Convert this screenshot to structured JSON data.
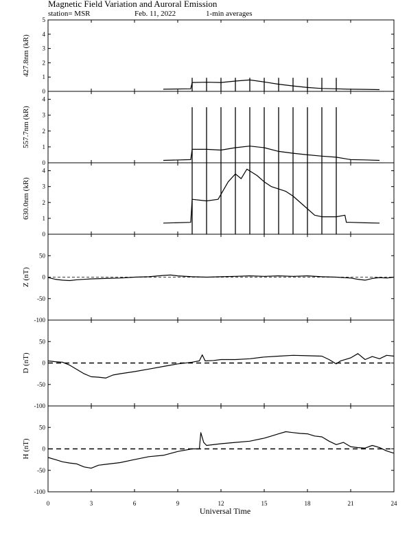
{
  "header": {
    "title": "Magnetic Field Variation and Auroral Emission",
    "station": "station= MSR",
    "date": "Feb. 11, 2022",
    "averaging": "1-min averages"
  },
  "chart_data": {
    "type": "line",
    "xlabel": "Universal Time",
    "xlim": [
      0,
      24
    ],
    "xticks": [
      0,
      3,
      6,
      9,
      12,
      15,
      18,
      21,
      24
    ],
    "panels": [
      {
        "id": "p4278",
        "ylabel": "427.8nm (kR)",
        "ylim": [
          0,
          5
        ],
        "yticks": [
          0,
          1,
          2,
          3,
          4,
          5
        ],
        "series": [
          {
            "values": [
              [
                8.0,
                0.15
              ],
              [
                9.9,
                0.18
              ],
              [
                10.0,
                0.62
              ],
              [
                11.0,
                0.64
              ],
              [
                12.0,
                0.62
              ],
              [
                13.0,
                0.72
              ],
              [
                14.0,
                0.8
              ],
              [
                15.0,
                0.66
              ],
              [
                16.0,
                0.5
              ],
              [
                17.0,
                0.38
              ],
              [
                18.0,
                0.27
              ],
              [
                19.0,
                0.2
              ],
              [
                20.0,
                0.18
              ],
              [
                21.0,
                0.15
              ],
              [
                22.0,
                0.14
              ],
              [
                23.0,
                0.12
              ]
            ]
          }
        ],
        "spikes": [
          10.0,
          11.0,
          12.0,
          13.0,
          14.0,
          15.0,
          16.0,
          17.0,
          18.0,
          19.0,
          20.0
        ],
        "spike_top": 0.95
      },
      {
        "id": "p5577",
        "ylabel": "557.7nm (kR)",
        "ylim": [
          0,
          4.5
        ],
        "yticks": [
          0,
          1,
          2,
          3,
          4
        ],
        "series": [
          {
            "values": [
              [
                8.0,
                0.15
              ],
              [
                9.9,
                0.2
              ],
              [
                10.0,
                0.85
              ],
              [
                11.0,
                0.85
              ],
              [
                12.0,
                0.8
              ],
              [
                13.0,
                0.95
              ],
              [
                14.0,
                1.05
              ],
              [
                15.0,
                0.95
              ],
              [
                16.0,
                0.72
              ],
              [
                17.0,
                0.6
              ],
              [
                18.0,
                0.5
              ],
              [
                19.0,
                0.42
              ],
              [
                20.0,
                0.35
              ],
              [
                21.0,
                0.2
              ],
              [
                22.0,
                0.18
              ],
              [
                23.0,
                0.15
              ]
            ]
          }
        ],
        "spikes": [
          10.0,
          11.0,
          12.0,
          13.0,
          14.0,
          15.0,
          16.0,
          17.0,
          18.0,
          19.0,
          20.0
        ],
        "spike_top": 3.5
      },
      {
        "id": "p6300",
        "ylabel": "630.0nm (kR)",
        "ylim": [
          0,
          4.5
        ],
        "yticks": [
          0,
          1,
          2,
          3,
          4
        ],
        "series": [
          {
            "values": [
              [
                8.0,
                0.7
              ],
              [
                9.9,
                0.75
              ],
              [
                10.0,
                2.2
              ],
              [
                11.0,
                2.1
              ],
              [
                11.8,
                2.2
              ],
              [
                12.5,
                3.3
              ],
              [
                13.0,
                3.8
              ],
              [
                13.4,
                3.5
              ],
              [
                13.8,
                4.1
              ],
              [
                14.5,
                3.7
              ],
              [
                15.0,
                3.3
              ],
              [
                15.5,
                3.0
              ],
              [
                16.5,
                2.7
              ],
              [
                17.0,
                2.4
              ],
              [
                18.0,
                1.6
              ],
              [
                18.5,
                1.2
              ],
              [
                19.0,
                1.1
              ],
              [
                20.0,
                1.1
              ],
              [
                20.6,
                1.2
              ],
              [
                20.7,
                0.75
              ],
              [
                21.0,
                0.75
              ],
              [
                22.0,
                0.72
              ],
              [
                23.0,
                0.7
              ]
            ]
          }
        ],
        "spikes": [
          10.0,
          11.0,
          12.0,
          13.0,
          14.0,
          15.0,
          16.0,
          17.0,
          18.0,
          19.0,
          20.0
        ],
        "spike_top": 4.5
      },
      {
        "id": "pZ",
        "ylabel": "Z (nT)",
        "ylim": [
          -100,
          100
        ],
        "yticks": [
          -100,
          -50,
          0,
          50
        ],
        "series": [
          {
            "values": [
              [
                0,
                -1
              ],
              [
                0.5,
                -5
              ],
              [
                1.0,
                -7
              ],
              [
                1.5,
                -8
              ],
              [
                2.0,
                -6
              ],
              [
                3.0,
                -4
              ],
              [
                4.0,
                -3
              ],
              [
                5.0,
                -2
              ],
              [
                6.0,
                0
              ],
              [
                7.0,
                1
              ],
              [
                8.0,
                4
              ],
              [
                8.5,
                5
              ],
              [
                9.0,
                3
              ],
              [
                10.0,
                1
              ],
              [
                11.0,
                0
              ],
              [
                12.0,
                1
              ],
              [
                13.0,
                2
              ],
              [
                14.0,
                3
              ],
              [
                15.0,
                2
              ],
              [
                16.0,
                3
              ],
              [
                17.0,
                2
              ],
              [
                18.0,
                3
              ],
              [
                19.0,
                1
              ],
              [
                20.0,
                0
              ],
              [
                21.0,
                -2
              ],
              [
                21.5,
                -5
              ],
              [
                22.0,
                -7
              ],
              [
                22.5,
                -3
              ],
              [
                23.0,
                -1
              ],
              [
                23.5,
                -2
              ],
              [
                24.0,
                0
              ]
            ]
          }
        ]
      },
      {
        "id": "pD",
        "ylabel": "D (nT)",
        "ylim": [
          -100,
          100
        ],
        "yticks": [
          -100,
          -50,
          0,
          50
        ],
        "series": [
          {
            "values": [
              [
                0,
                5
              ],
              [
                0.5,
                3
              ],
              [
                1.0,
                2
              ],
              [
                1.5,
                -5
              ],
              [
                2.0,
                -15
              ],
              [
                2.5,
                -25
              ],
              [
                3.0,
                -32
              ],
              [
                3.5,
                -33
              ],
              [
                4.0,
                -35
              ],
              [
                4.5,
                -28
              ],
              [
                5.0,
                -25
              ],
              [
                6.0,
                -20
              ],
              [
                7.0,
                -14
              ],
              [
                8.0,
                -8
              ],
              [
                9.0,
                -2
              ],
              [
                10.0,
                2
              ],
              [
                10.5,
                5
              ],
              [
                10.7,
                19
              ],
              [
                10.9,
                5
              ],
              [
                11.5,
                6
              ],
              [
                12.0,
                8
              ],
              [
                13.0,
                8
              ],
              [
                14.0,
                10
              ],
              [
                15.0,
                14
              ],
              [
                16.0,
                16
              ],
              [
                17.0,
                18
              ],
              [
                18.0,
                17
              ],
              [
                19.0,
                16
              ],
              [
                19.5,
                8
              ],
              [
                20.0,
                -2
              ],
              [
                20.3,
                5
              ],
              [
                21.0,
                12
              ],
              [
                21.5,
                22
              ],
              [
                22.0,
                8
              ],
              [
                22.5,
                15
              ],
              [
                23.0,
                10
              ],
              [
                23.5,
                18
              ],
              [
                24.0,
                16
              ]
            ]
          }
        ]
      },
      {
        "id": "pH",
        "ylabel": "H (nT)",
        "ylim": [
          -100,
          100
        ],
        "yticks": [
          -100,
          -50,
          0,
          50
        ],
        "series": [
          {
            "values": [
              [
                0,
                -20
              ],
              [
                0.5,
                -25
              ],
              [
                1.0,
                -30
              ],
              [
                1.5,
                -33
              ],
              [
                2.0,
                -35
              ],
              [
                2.5,
                -42
              ],
              [
                3.0,
                -45
              ],
              [
                3.5,
                -38
              ],
              [
                4.0,
                -36
              ],
              [
                5.0,
                -32
              ],
              [
                6.0,
                -25
              ],
              [
                7.0,
                -18
              ],
              [
                8.0,
                -15
              ],
              [
                9.0,
                -6
              ],
              [
                10.0,
                0
              ],
              [
                10.5,
                0
              ],
              [
                10.6,
                38
              ],
              [
                10.8,
                15
              ],
              [
                11.0,
                8
              ],
              [
                12.0,
                12
              ],
              [
                13.0,
                15
              ],
              [
                14.0,
                18
              ],
              [
                15.0,
                25
              ],
              [
                15.5,
                30
              ],
              [
                16.0,
                35
              ],
              [
                16.5,
                40
              ],
              [
                17.0,
                38
              ],
              [
                17.5,
                36
              ],
              [
                18.0,
                35
              ],
              [
                18.5,
                30
              ],
              [
                19.0,
                28
              ],
              [
                19.5,
                18
              ],
              [
                20.0,
                10
              ],
              [
                20.5,
                15
              ],
              [
                21.0,
                5
              ],
              [
                21.5,
                3
              ],
              [
                22.0,
                2
              ],
              [
                22.5,
                8
              ],
              [
                23.0,
                3
              ],
              [
                23.5,
                -5
              ],
              [
                24.0,
                -10
              ]
            ]
          }
        ]
      }
    ]
  }
}
